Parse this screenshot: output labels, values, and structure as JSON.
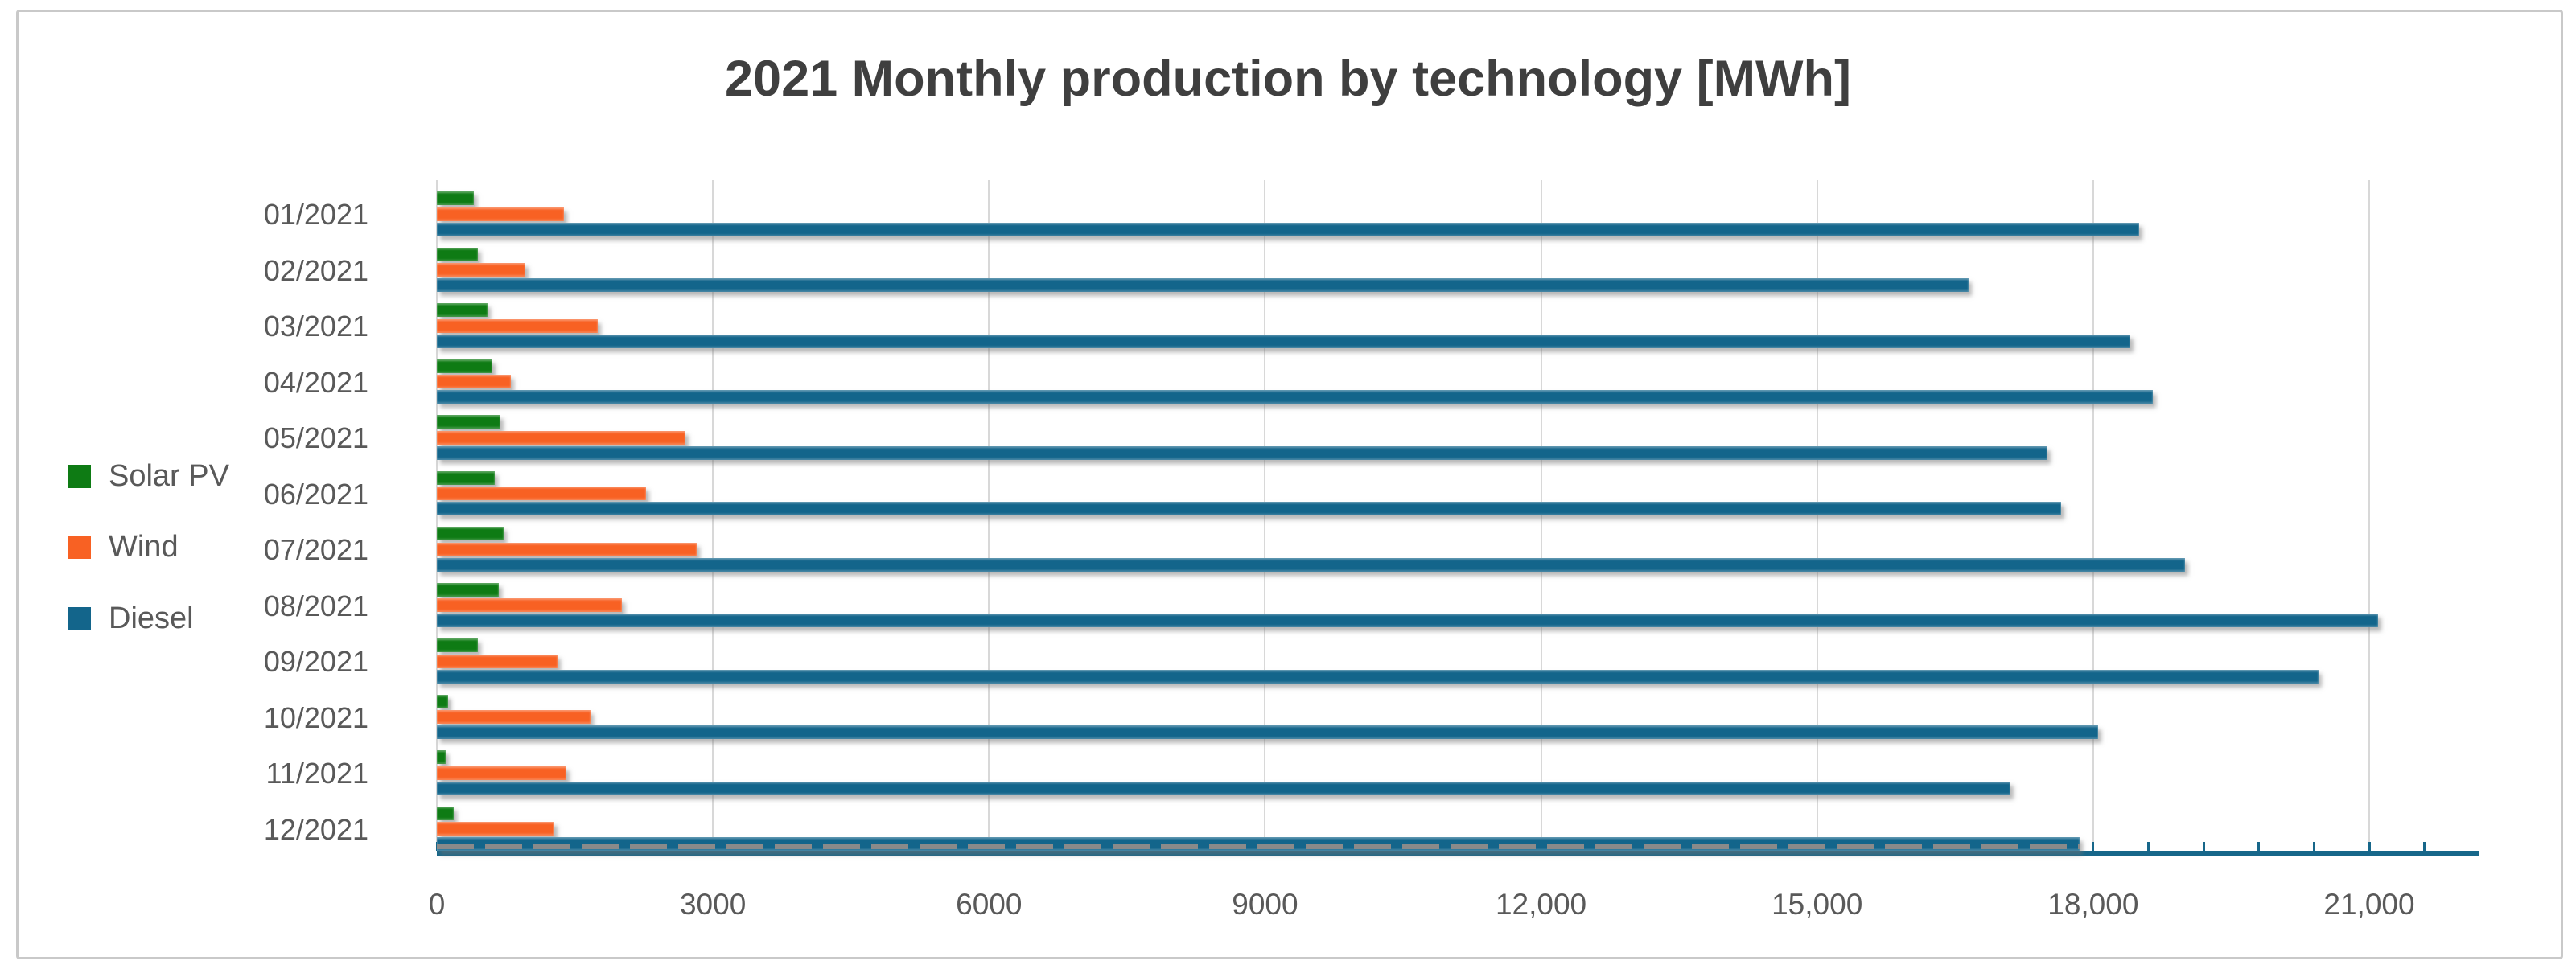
{
  "window": {
    "background": "#ffffff",
    "border_color": "#c9c9c9"
  },
  "chart_data": {
    "type": "bar",
    "orientation": "horizontal",
    "title": "2021 Monthly production by technology [MWh]",
    "categories": [
      "01/2021",
      "02/2021",
      "03/2021",
      "04/2021",
      "05/2021",
      "06/2021",
      "07/2021",
      "08/2021",
      "09/2021",
      "10/2021",
      "11/2021",
      "12/2021"
    ],
    "series": [
      {
        "name": "Solar PV",
        "color": "#0e7b14",
        "values": [
          400,
          450,
          550,
          600,
          690,
          630,
          730,
          670,
          450,
          120,
          100,
          180
        ]
      },
      {
        "name": "Wind",
        "color": "#f86123",
        "values": [
          1380,
          960,
          1750,
          800,
          2700,
          2270,
          2820,
          2010,
          1310,
          1670,
          1410,
          1280
        ]
      },
      {
        "name": "Diesel",
        "color": "#13658b",
        "values": [
          18500,
          16650,
          18400,
          18650,
          17500,
          17650,
          19000,
          21100,
          20450,
          18050,
          17100,
          17850
        ]
      }
    ],
    "x_axis": {
      "min": 0,
      "max": 22200,
      "major_unit": 3000,
      "minor_unit": 600,
      "tick_labels": [
        "0",
        "3000",
        "6000",
        "9000",
        "12,000",
        "15,000",
        "18,000",
        "21,000"
      ],
      "gridlines": true,
      "axis_line_color": "#17678a"
    },
    "y_axis": {
      "labels_color": "#595959"
    },
    "legend": {
      "position": "left",
      "entries": [
        "Solar PV",
        "Wind",
        "Diesel"
      ]
    },
    "styling": {
      "grid_color": "#d8d8d8",
      "label_color": "#595959",
      "title_color": "#3f3f3f",
      "last_bar_dash_overlay_color": "#8a8a8a"
    }
  }
}
